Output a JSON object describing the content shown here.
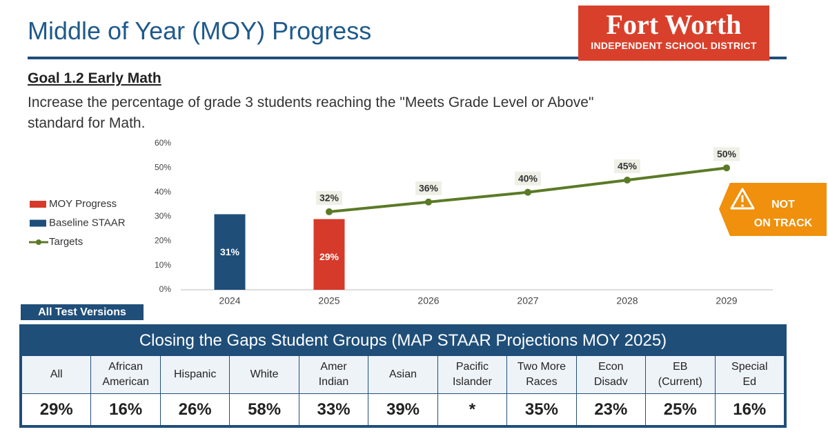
{
  "header": {
    "title": "Middle of Year (MOY) Progress",
    "logo_name": "Fort Worth",
    "logo_subtitle": "INDEPENDENT SCHOOL DISTRICT"
  },
  "goal": {
    "title": "Goal 1.2 Early Math",
    "description_lines": [
      "Increase the percentage of grade 3 students reaching the \"Meets Grade Level or Above\"",
      "standard for Math."
    ]
  },
  "chart_data": {
    "type": "combo",
    "categories": [
      "2024",
      "2025",
      "2026",
      "2027",
      "2028",
      "2029"
    ],
    "series": [
      {
        "name": "MOY Progress",
        "type": "bar",
        "color": "#d63a2a",
        "values": [
          null,
          29,
          null,
          null,
          null,
          null
        ],
        "value_labels": [
          null,
          "29%",
          null,
          null,
          null,
          null
        ]
      },
      {
        "name": "Baseline STAAR",
        "type": "bar",
        "color": "#1f4e79",
        "values": [
          31,
          null,
          null,
          null,
          null,
          null
        ],
        "value_labels": [
          "31%",
          null,
          null,
          null,
          null,
          null
        ]
      },
      {
        "name": "Targets",
        "type": "line",
        "color": "#5b7a26",
        "values": [
          null,
          32,
          36,
          40,
          45,
          50
        ],
        "value_labels": [
          null,
          "32%",
          "36%",
          "40%",
          "45%",
          "50%"
        ]
      }
    ],
    "ylim": [
      0,
      60
    ],
    "yticks": [
      {
        "value": 0,
        "label": "0%"
      },
      {
        "value": 10,
        "label": "10%"
      },
      {
        "value": 20,
        "label": "20%"
      },
      {
        "value": 30,
        "label": "30%"
      },
      {
        "value": 40,
        "label": "40%"
      },
      {
        "value": 50,
        "label": "50%"
      },
      {
        "value": 60,
        "label": "60%"
      }
    ],
    "legend": "left"
  },
  "badge": {
    "lines": [
      "NOT",
      "ON TRACK"
    ]
  },
  "tag": "All Test Versions",
  "table": {
    "title": "Closing the Gaps Student Groups (MAP STAAR Projections MOY 2025)",
    "columns": [
      [
        "All"
      ],
      [
        "African",
        "American"
      ],
      [
        "Hispanic"
      ],
      [
        "White"
      ],
      [
        "Amer",
        "Indian"
      ],
      [
        "Asian"
      ],
      [
        "Pacific",
        "Islander"
      ],
      [
        "Two More",
        "Races"
      ],
      [
        "Econ",
        "Disadv"
      ],
      [
        "EB",
        "(Current)"
      ],
      [
        "Special",
        "Ed"
      ]
    ],
    "rows": [
      [
        "29%",
        "16%",
        "26%",
        "58%",
        "33%",
        "39%",
        "*",
        "35%",
        "23%",
        "25%",
        "16%"
      ]
    ]
  }
}
